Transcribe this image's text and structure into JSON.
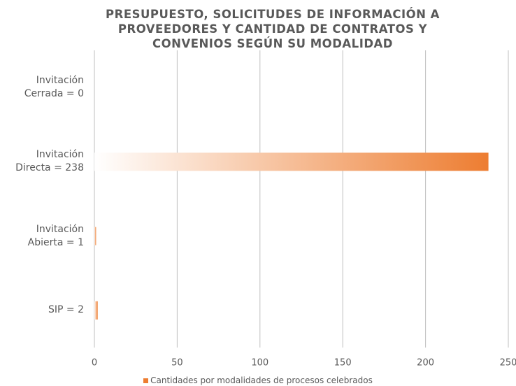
{
  "chart_data": {
    "type": "barh",
    "title": "PRESUPUESTO, SOLICITUDES DE INFORMACIÓN A PROVEEDORES Y CANTIDAD DE CONTRATOS Y CONVENIOS SEGÚN SU MODALIDAD",
    "categories": [
      "Invitación Cerrada = 0",
      "Invitación Directa = 238",
      "Invitación Abierta = 1",
      "SIP = 2"
    ],
    "series": [
      {
        "name": "Cantidades por modalidades de procesos celebrados",
        "color": "#ed7d31",
        "values": [
          0,
          238,
          1,
          2
        ]
      }
    ],
    "xlim": [
      0,
      250
    ],
    "xticks": [
      0,
      50,
      100,
      150,
      200,
      250
    ],
    "grid": true,
    "legend": "bottom"
  }
}
